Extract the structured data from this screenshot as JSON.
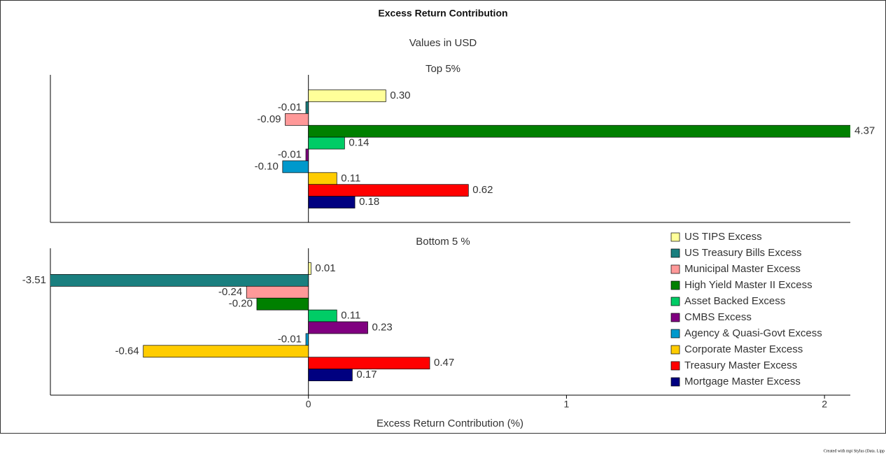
{
  "title": "Excess Return Contribution",
  "subtitle": "Values in USD",
  "footer": "Created with mpi Stylus (Data. Lipp",
  "chart_data": [
    {
      "type": "bar",
      "orientation": "horizontal",
      "title": "Top 5%",
      "categories": [
        "US TIPS Excess",
        "US Treasury Bills Excess",
        "Municipal Master Excess",
        "High Yield Master II Excess",
        "Asset Backed Excess",
        "CMBS Excess",
        "Agency & Quasi-Govt Excess",
        "Corporate Master Excess",
        "Treasury Master Excess",
        "Mortgage Master Excess"
      ],
      "colors": [
        "#ffff99",
        "#1a7f7f",
        "#ff9999",
        "#008000",
        "#00cc66",
        "#800080",
        "#0099cc",
        "#ffcc00",
        "#ff0000",
        "#000080"
      ],
      "values": [
        0.3,
        -0.01,
        -0.09,
        4.37,
        0.14,
        -0.01,
        -0.1,
        0.11,
        0.62,
        0.18
      ],
      "value_labels": [
        "0.30",
        "-0.01",
        "-0.09",
        "4.37",
        "0.14",
        "-0.01",
        "-0.10",
        "0.11",
        "0.62",
        "0.18"
      ],
      "xlim": [
        -1,
        2.1
      ]
    },
    {
      "type": "bar",
      "orientation": "horizontal",
      "title": "Bottom 5 %",
      "categories": [
        "US TIPS Excess",
        "US Treasury Bills Excess",
        "Municipal Master Excess",
        "High Yield Master II Excess",
        "Asset Backed Excess",
        "CMBS Excess",
        "Agency & Quasi-Govt Excess",
        "Corporate Master Excess",
        "Treasury Master Excess",
        "Mortgage Master Excess"
      ],
      "colors": [
        "#ffff99",
        "#1a7f7f",
        "#ff9999",
        "#008000",
        "#00cc66",
        "#800080",
        "#0099cc",
        "#ffcc00",
        "#ff0000",
        "#000080"
      ],
      "values": [
        0.01,
        -3.51,
        -0.24,
        -0.2,
        0.11,
        0.23,
        -0.01,
        -0.64,
        0.47,
        0.17
      ],
      "value_labels": [
        "0.01",
        "-3.51",
        "-0.24",
        "-0.20",
        "0.11",
        "0.23",
        "-0.01",
        "-0.64",
        "0.47",
        "0.17"
      ],
      "xlim": [
        -1,
        2.1
      ],
      "xticks": [
        0,
        1,
        2
      ],
      "xlabel": "Excess Return Contribution (%)",
      "legend": "right"
    }
  ]
}
